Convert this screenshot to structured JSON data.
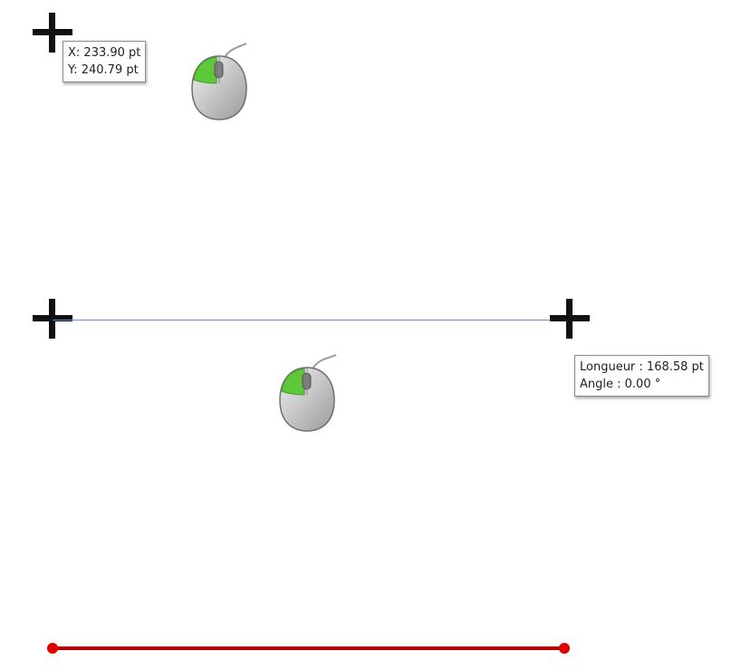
{
  "step1": {
    "tooltip": {
      "x_label": "X: 233.90 pt",
      "y_label": "Y: 240.79 pt"
    },
    "mouse_icon": "left-click-mouse-icon"
  },
  "step2": {
    "tooltip": {
      "length_label": "Longueur : 168.58 pt",
      "angle_label": "Angle : 0.00 °"
    },
    "mouse_icon": "left-click-mouse-icon",
    "line_color": "#6b8fd6"
  },
  "step3": {
    "line_color": "#c00000"
  }
}
